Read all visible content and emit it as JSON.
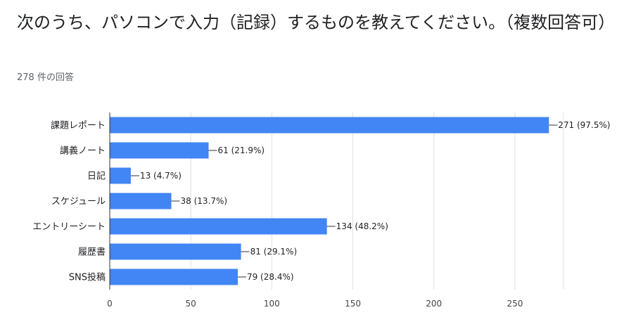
{
  "question": {
    "title": "次のうち、パソコンで入力（記録）するものを教えてください。（複数回答可）",
    "responses": "278 件の回答"
  },
  "colors": {
    "bar": "#4285f4",
    "grid": "#e0e0e0",
    "axis": "#333333"
  },
  "chart_data": {
    "type": "bar",
    "orientation": "horizontal",
    "categories": [
      "課題レポート",
      "講義ノート",
      "日記",
      "スケジュール",
      "エントリーシート",
      "履歴書",
      "SNS投稿"
    ],
    "values": [
      271,
      61,
      13,
      38,
      134,
      81,
      79
    ],
    "data_labels": [
      "271 (97.5%)",
      "61 (21.9%)",
      "13 (4.7%)",
      "38 (13.7%)",
      "134 (48.2%)",
      "81 (29.1%)",
      "79 (28.4%)"
    ],
    "xticks": [
      0,
      50,
      100,
      150,
      200,
      250
    ],
    "xlim": [
      0,
      280
    ],
    "grid": true,
    "legend": "none"
  }
}
